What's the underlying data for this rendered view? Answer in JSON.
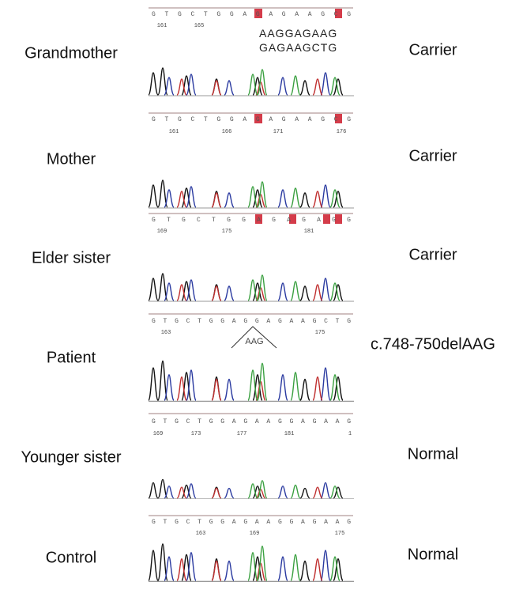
{
  "rows": [
    {
      "label": "Grandmother",
      "status": "Carrier",
      "sequence": "G T G C T G G A G   A G A A G C   G",
      "positions": [
        161,
        165
      ],
      "extra": [
        "AAGGAGAAG",
        "GAGAAGCTG"
      ]
    },
    {
      "label": "Mother",
      "status": "Carrier",
      "sequence": "G T G C T G G A G   A G A A G C   G",
      "positions": [
        161,
        166,
        171,
        176
      ]
    },
    {
      "label": "Elder sister",
      "status": "Carrier",
      "sequence": "G T G C T G G A G   A G   A G     G",
      "positions": [
        169,
        175,
        181
      ]
    },
    {
      "label": "Patient",
      "status": "c.748-750delAAG",
      "sequence": "G T G C T G G A G G A G A A G C T G",
      "positions": [
        163,
        175
      ],
      "annotation": "AAG"
    },
    {
      "label": "Younger sister",
      "status": "Normal",
      "sequence": "G T G C T G G A G A A G G A G A A G",
      "positions": [
        169,
        173,
        177,
        181,
        1
      ]
    },
    {
      "label": "Control",
      "status": "Normal",
      "sequence": "G T G C T G G A G A A G G A G A A G",
      "positions": [
        163,
        169,
        175
      ]
    }
  ]
}
